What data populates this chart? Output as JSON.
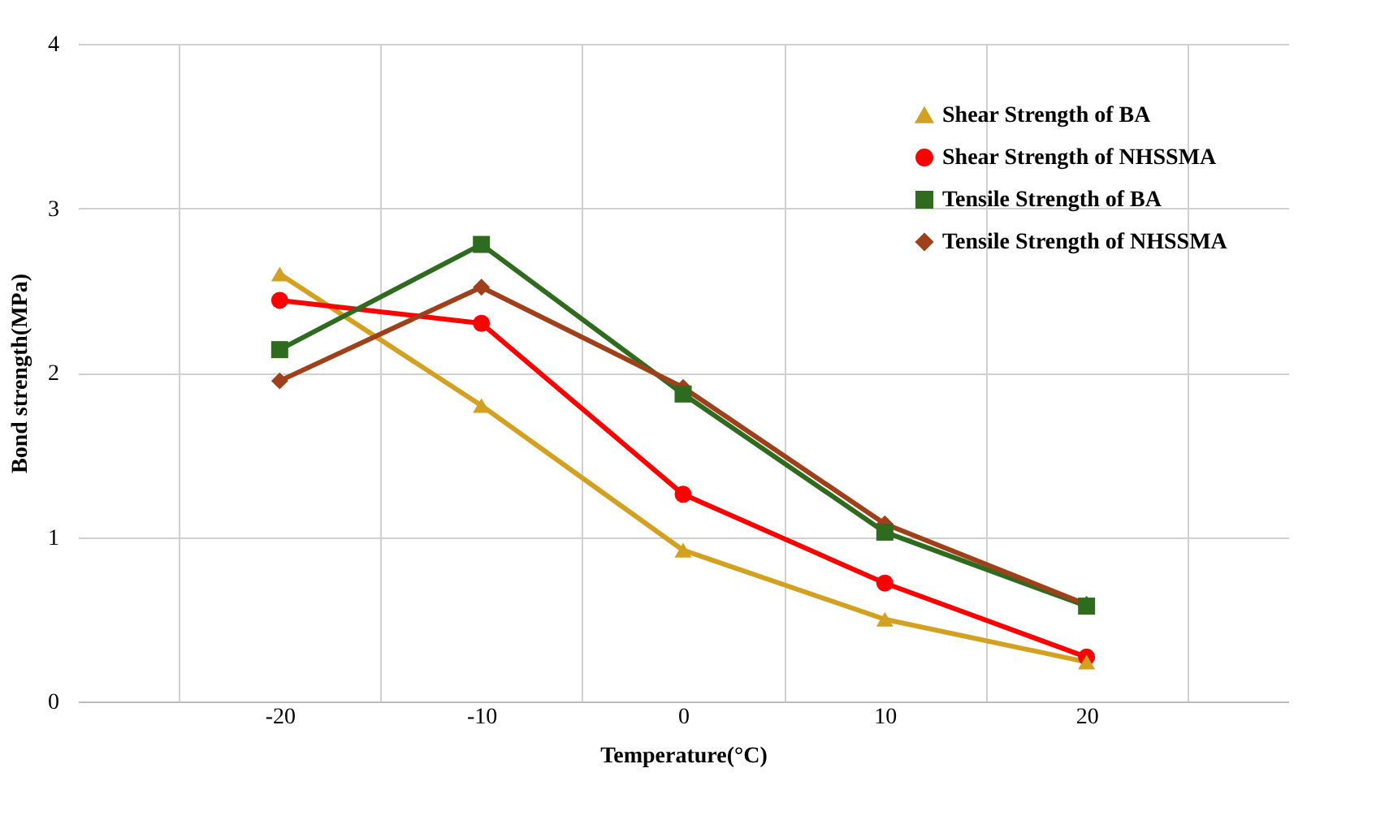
{
  "chart_data": {
    "type": "line",
    "xlabel": "Temperature(°C)",
    "ylabel": "Bond strength(MPa)",
    "categories": [
      "-20",
      "-10",
      "0",
      "10",
      "20"
    ],
    "series": [
      {
        "name": "Shear Strength of BA",
        "color": "#d4a020",
        "marker": "triangle",
        "values": [
          2.6,
          1.8,
          0.92,
          0.5,
          0.24
        ]
      },
      {
        "name": "Shear Strength of NHSSMA",
        "color": "#ff0000",
        "marker": "circle",
        "values": [
          2.44,
          2.3,
          1.26,
          0.72,
          0.27
        ]
      },
      {
        "name": "Tensile Strength of BA",
        "color": "#2e6b1f",
        "marker": "square",
        "values": [
          2.14,
          2.78,
          1.87,
          1.03,
          0.58
        ]
      },
      {
        "name": "Tensile Strength of NHSSMA",
        "color": "#a0401a",
        "marker": "diamond",
        "values": [
          1.95,
          2.52,
          1.91,
          1.08,
          0.59
        ]
      }
    ],
    "ylim": [
      0,
      4
    ],
    "yticks": [
      0,
      1,
      2,
      3,
      4
    ],
    "grid": true,
    "legend": "top right",
    "line_style": "solid"
  }
}
